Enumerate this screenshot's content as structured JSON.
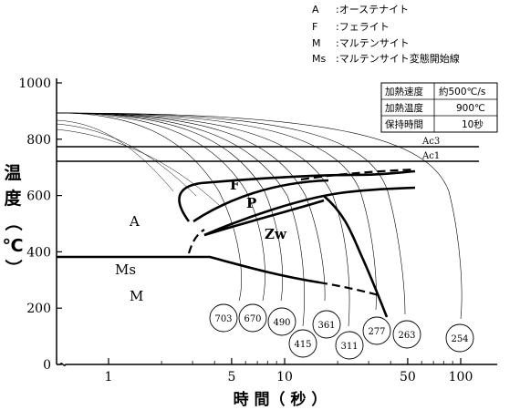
{
  "legend": [
    {
      "symbol": "A",
      "text": ":オーステナイト"
    },
    {
      "symbol": "F",
      "text": ":フェライト"
    },
    {
      "symbol": "M",
      "text": ":マルテンサイト"
    },
    {
      "symbol": "Ms",
      "text": ":マルテンサイト変態開始線"
    }
  ],
  "conditions": [
    {
      "label": "加熱速度",
      "value": "約500℃/s"
    },
    {
      "label": "加熱温度",
      "value": "900℃"
    },
    {
      "label": "保持時間",
      "value": "10秒"
    }
  ],
  "y_axis": {
    "title_chars": [
      "温",
      "度",
      "（",
      "℃",
      "）"
    ],
    "ticks": [
      {
        "v": 0,
        "label": "0"
      },
      {
        "v": 200,
        "label": "200"
      },
      {
        "v": 400,
        "label": "400"
      },
      {
        "v": 600,
        "label": "600"
      },
      {
        "v": 800,
        "label": "800"
      },
      {
        "v": 1000,
        "label": "1000"
      }
    ]
  },
  "x_axis": {
    "title": "時 間（ 秒 ）",
    "ticks": [
      {
        "v": 1,
        "label": "1"
      },
      {
        "v": 5,
        "label": "5"
      },
      {
        "v": 10,
        "label": "10"
      },
      {
        "v": 50,
        "label": "50"
      },
      {
        "v": 100,
        "label": "100"
      }
    ]
  },
  "lines": {
    "ac3": {
      "label": "Ac3",
      "temp": 780
    },
    "ac1": {
      "label": "Ac1",
      "temp": 730
    }
  },
  "regions": {
    "A": "A",
    "F": "F",
    "P": "P",
    "Zw": "Zw",
    "Ms": "Ms",
    "M": "M"
  },
  "cooling_rates": [
    "703",
    "670",
    "490",
    "415",
    "361",
    "311",
    "277",
    "263",
    "254"
  ]
}
